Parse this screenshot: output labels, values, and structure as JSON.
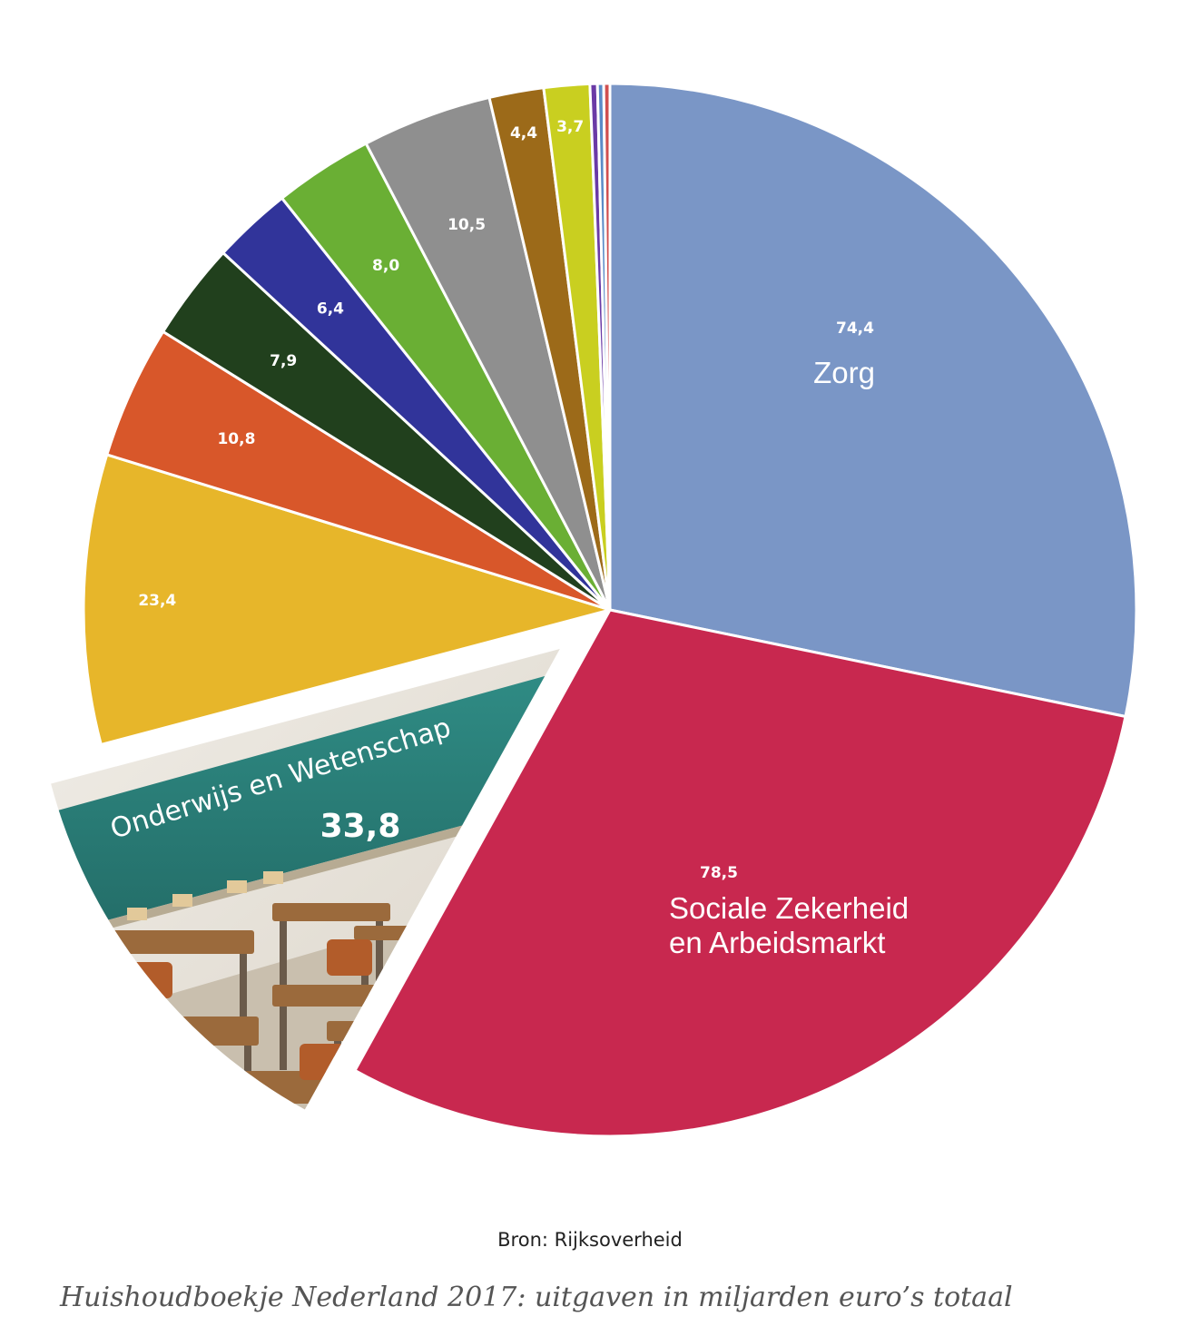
{
  "chart_data": {
    "type": "pie",
    "start_angle_deg": 0,
    "direction": "clockwise",
    "exploded_category_index": 2,
    "categories": [
      "Zorg",
      "Sociale Zekerheid en Arbeidsmarkt",
      "Onderwijs en Wetenschap",
      "",
      "",
      "",
      "",
      "",
      "",
      "",
      "",
      "",
      "",
      ""
    ],
    "values": [
      74.4,
      78.5,
      33.8,
      23.4,
      10.8,
      7.9,
      6.4,
      8.0,
      10.5,
      4.4,
      3.7,
      0.6,
      0.5,
      0.5
    ],
    "value_labels": [
      "74,4",
      "78,5",
      "33,8",
      "23,4",
      "10,8",
      "7,9",
      "6,4",
      "8,0",
      "10,5",
      "4,4",
      "3,7",
      "",
      "",
      ""
    ],
    "label_lines": [
      [
        "Zorg"
      ],
      [
        "Sociale Zekerheid",
        "en Arbeidsmarkt"
      ],
      [
        "Onderwijs en Wetenschap"
      ],
      [],
      [],
      [],
      [],
      [],
      [],
      [],
      [],
      [],
      [],
      []
    ],
    "colors": [
      "#7a96c6",
      "#c8284f",
      "#2d7e78",
      "#e7b62a",
      "#d8572a",
      "#21401d",
      "#31349a",
      "#6aaf34",
      "#8f8f8f",
      "#9c6a19",
      "#c9cf20",
      "#6a3aa6",
      "#5b8bc7",
      "#d14f4f"
    ],
    "source": "Bron: Rijksoverheid",
    "caption": "Huishoudboekje Nederland 2017: uitgaven in miljarden euro’s totaal"
  }
}
